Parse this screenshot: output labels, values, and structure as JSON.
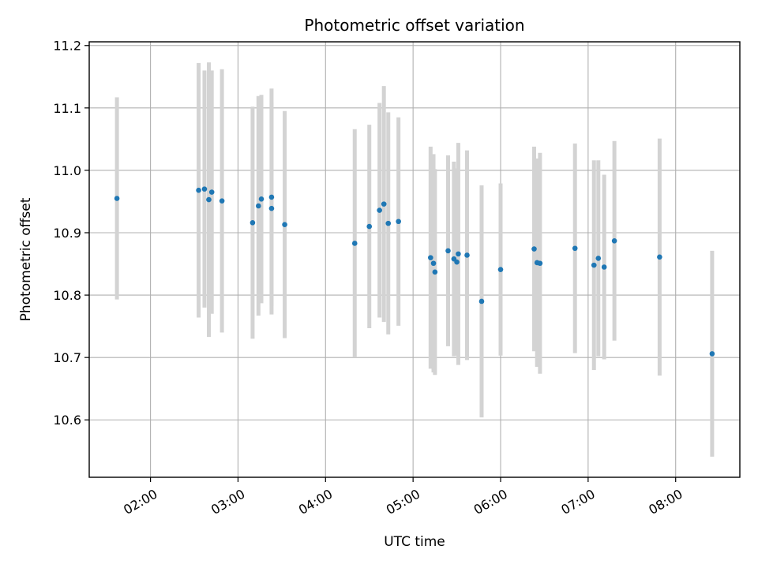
{
  "chart_data": {
    "type": "scatter",
    "title": "Photometric offset variation",
    "xlabel": "UTC time",
    "ylabel": "Photometric offset",
    "grid": true,
    "legend": "none",
    "x_unit": "hours UTC",
    "xlim": [
      "01:18",
      "08:44"
    ],
    "ylim": [
      10.508,
      11.206
    ],
    "xticks": [
      "02:00",
      "03:00",
      "04:00",
      "05:00",
      "06:00",
      "07:00",
      "08:00"
    ],
    "yticks": [
      "10.6",
      "10.7",
      "10.8",
      "10.9",
      "11.0",
      "11.1",
      "11.2"
    ],
    "colors": {
      "points": "#1f77b4",
      "errorbars": "#d3d3d3",
      "grid": "#b0b0b0"
    },
    "series": [
      {
        "values": [
          {
            "x": "01:37",
            "y": 10.955,
            "err": 0.162
          },
          {
            "x": "02:33",
            "y": 10.968,
            "err": 0.204
          },
          {
            "x": "02:37",
            "y": 10.97,
            "err": 0.19
          },
          {
            "x": "02:40",
            "y": 10.953,
            "err": 0.22
          },
          {
            "x": "02:42",
            "y": 10.965,
            "err": 0.195
          },
          {
            "x": "02:49",
            "y": 10.951,
            "err": 0.211
          },
          {
            "x": "03:10",
            "y": 10.916,
            "err": 0.186
          },
          {
            "x": "03:14",
            "y": 10.943,
            "err": 0.176
          },
          {
            "x": "03:16",
            "y": 10.954,
            "err": 0.167
          },
          {
            "x": "03:23",
            "y": 10.957,
            "err": 0.174
          },
          {
            "x": "03:23",
            "y": 10.939,
            "err": 0.17
          },
          {
            "x": "03:32",
            "y": 10.913,
            "err": 0.182
          },
          {
            "x": "04:20",
            "y": 10.883,
            "err": 0.183
          },
          {
            "x": "04:30",
            "y": 10.91,
            "err": 0.163
          },
          {
            "x": "04:37",
            "y": 10.936,
            "err": 0.172
          },
          {
            "x": "04:40",
            "y": 10.946,
            "err": 0.189
          },
          {
            "x": "04:43",
            "y": 10.915,
            "err": 0.178
          },
          {
            "x": "04:50",
            "y": 10.918,
            "err": 0.167
          },
          {
            "x": "05:12",
            "y": 10.86,
            "err": 0.178
          },
          {
            "x": "05:14",
            "y": 10.851,
            "err": 0.175
          },
          {
            "x": "05:15",
            "y": 10.837,
            "err": 0.165
          },
          {
            "x": "05:24",
            "y": 10.871,
            "err": 0.153
          },
          {
            "x": "05:28",
            "y": 10.858,
            "err": 0.156
          },
          {
            "x": "05:30",
            "y": 10.853,
            "err": 0.15
          },
          {
            "x": "05:31",
            "y": 10.866,
            "err": 0.178
          },
          {
            "x": "05:37",
            "y": 10.864,
            "err": 0.168
          },
          {
            "x": "05:47",
            "y": 10.79,
            "err": 0.186
          },
          {
            "x": "06:00",
            "y": 10.841,
            "err": 0.138
          },
          {
            "x": "06:23",
            "y": 10.874,
            "err": 0.164
          },
          {
            "x": "06:25",
            "y": 10.852,
            "err": 0.167
          },
          {
            "x": "06:27",
            "y": 10.851,
            "err": 0.177
          },
          {
            "x": "06:51",
            "y": 10.875,
            "err": 0.168
          },
          {
            "x": "07:04",
            "y": 10.848,
            "err": 0.168
          },
          {
            "x": "07:07",
            "y": 10.859,
            "err": 0.157
          },
          {
            "x": "07:11",
            "y": 10.845,
            "err": 0.148
          },
          {
            "x": "07:18",
            "y": 10.887,
            "err": 0.16
          },
          {
            "x": "07:49",
            "y": 10.861,
            "err": 0.19
          },
          {
            "x": "08:25",
            "y": 10.706,
            "err": 0.165
          }
        ]
      }
    ]
  }
}
